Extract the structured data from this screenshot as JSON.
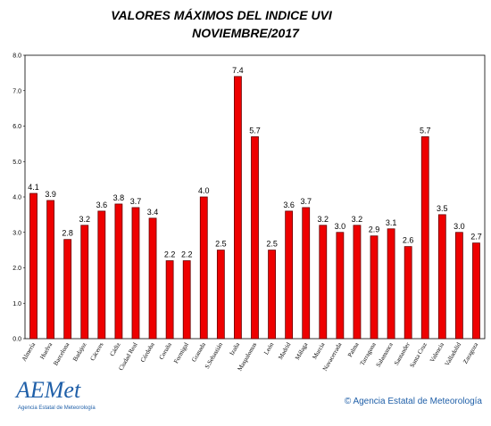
{
  "chart_data": {
    "type": "bar",
    "title": "VALORES MÁXIMOS DEL INDICE UVI",
    "subtitle": "NOVIEMBRE/2017",
    "categories": [
      "Almería",
      "Huelva",
      "Barcelona",
      "Badajoz",
      "Cáceres",
      "Cádiz",
      "Ciudad Real",
      "Córdoba",
      "Coruña",
      "Formigal",
      "Granada",
      "S.Sebastián",
      "Izaña",
      "Maspalomas",
      "León",
      "Madrid",
      "Málaga",
      "Murcia",
      "Navacerrada",
      "Palma",
      "Tarragona",
      "Salamanca",
      "Santander",
      "Santa Cruz",
      "Valencia",
      "Valladolid",
      "Zaragoza"
    ],
    "values": [
      4.1,
      3.9,
      2.8,
      3.2,
      3.6,
      3.8,
      3.7,
      3.4,
      2.2,
      2.2,
      4.0,
      2.5,
      7.4,
      5.7,
      2.5,
      3.6,
      3.7,
      3.2,
      3.0,
      3.2,
      2.9,
      3.1,
      2.6,
      5.7,
      3.5,
      3.0,
      2.7
    ],
    "value_labels": [
      "4.1",
      "3.9",
      "2.8",
      "3.2",
      "3.6",
      "3.8",
      "3.7",
      "3.4",
      "2.2",
      "2.2",
      "4.0",
      "2.5",
      "7.4",
      "5.7",
      "2.5",
      "3.6",
      "3.7",
      "3.2",
      "3.0",
      "3.2",
      "2.9",
      "3.1",
      "2.6",
      "5.7",
      "3.5",
      "3.0",
      "2.7"
    ],
    "color": "#ee0000",
    "ylim": [
      0,
      8
    ],
    "yticks": [
      {
        "value": 0,
        "label": "0.0"
      },
      {
        "value": 1,
        "label": "1.0"
      },
      {
        "value": 2,
        "label": "2.0"
      },
      {
        "value": 3,
        "label": "3.0"
      },
      {
        "value": 4,
        "label": "4.0"
      },
      {
        "value": 5,
        "label": "5.0"
      },
      {
        "value": 6,
        "label": "6.0"
      },
      {
        "value": 7,
        "label": "7.0"
      },
      {
        "value": 8,
        "label": "8.0"
      }
    ],
    "grid": false
  },
  "logo": {
    "name": "AEMet",
    "caption": "Agencia Estatal de Meteorología"
  },
  "footer": "© Agencia Estatal de Meteorología"
}
